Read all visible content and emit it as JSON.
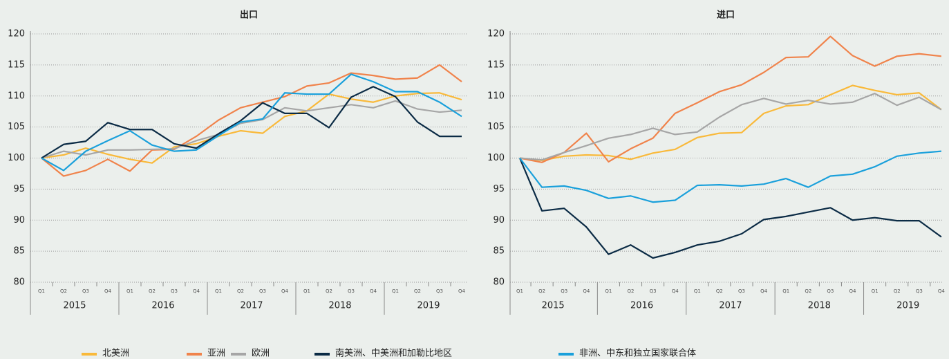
{
  "chart_data": [
    {
      "type": "line",
      "title": "出口",
      "categories": [
        "Q1",
        "Q2",
        "Q3",
        "Q4",
        "Q1",
        "Q2",
        "Q3",
        "Q4",
        "Q1",
        "Q2",
        "Q3",
        "Q4",
        "Q1",
        "Q2",
        "Q3",
        "Q4",
        "Q1",
        "Q2",
        "Q3",
        "Q4"
      ],
      "years": [
        "2015",
        "2016",
        "2017",
        "2018",
        "2019"
      ],
      "ylim": [
        80,
        120
      ],
      "yticks": [
        80,
        85,
        90,
        95,
        100,
        105,
        110,
        115,
        120
      ],
      "grid": true,
      "series": [
        {
          "name": "北美洲",
          "color": "#f9b93a",
          "values": [
            100,
            100.5,
            101.6,
            100.6,
            99.8,
            99.2,
            101.8,
            102.3,
            103.5,
            104.4,
            104.0,
            106.7,
            107.6,
            110.3,
            109.5,
            109.0,
            110.0,
            110.4,
            110.5,
            109.4
          ]
        },
        {
          "name": "亚洲",
          "color": "#f0834b",
          "values": [
            100,
            97.1,
            98.0,
            99.8,
            97.9,
            101.3,
            101.4,
            103.5,
            106.1,
            108.1,
            109.0,
            109.9,
            111.6,
            112.1,
            113.7,
            113.3,
            112.7,
            112.9,
            115.0,
            112.3
          ]
        },
        {
          "name": "欧洲",
          "color": "#a6a6a6",
          "values": [
            100,
            101.1,
            100.5,
            101.3,
            101.3,
            101.4,
            101.5,
            102.8,
            103.8,
            105.6,
            106.2,
            108.1,
            107.6,
            108.1,
            108.6,
            108.1,
            109.2,
            107.9,
            107.4,
            107.7
          ]
        },
        {
          "name": "南美洲、中美洲和加勒比地区",
          "color": "#0b2b45",
          "values": [
            100,
            102.2,
            102.7,
            105.7,
            104.6,
            104.6,
            102.3,
            101.6,
            103.9,
            106.0,
            108.9,
            107.2,
            107.2,
            104.9,
            109.8,
            111.5,
            109.9,
            105.8,
            103.5,
            103.5
          ]
        },
        {
          "name": "非洲、中东和独立国家联合体",
          "color": "#1aa0db",
          "values": [
            100,
            98.0,
            101.1,
            102.8,
            104.4,
            102.1,
            101.1,
            101.3,
            103.6,
            105.8,
            106.3,
            110.5,
            110.3,
            110.3,
            113.5,
            112.3,
            110.7,
            110.7,
            109.0,
            106.7
          ]
        }
      ]
    },
    {
      "type": "line",
      "title": "进口",
      "categories": [
        "Q1",
        "Q2",
        "Q3",
        "Q4",
        "Q1",
        "Q2",
        "Q3",
        "Q4",
        "Q1",
        "Q2",
        "Q3",
        "Q4",
        "Q1",
        "Q2",
        "Q3",
        "Q4",
        "Q1",
        "Q2",
        "Q3",
        "Q4"
      ],
      "years": [
        "2015",
        "2016",
        "2017",
        "2018",
        "2019"
      ],
      "ylim": [
        80,
        120
      ],
      "yticks": [
        80,
        85,
        90,
        95,
        100,
        105,
        110,
        115,
        120
      ],
      "grid": true,
      "series": [
        {
          "color": "#f9b93a",
          "values": [
            100,
            99.6,
            100.3,
            100.5,
            100.4,
            99.8,
            100.8,
            101.4,
            103.3,
            104.0,
            104.1,
            107.2,
            108.4,
            108.6,
            110.2,
            111.7,
            110.9,
            110.2,
            110.5,
            107.8
          ]
        },
        {
          "color": "#f0834b",
          "values": [
            100,
            99.3,
            100.9,
            104.0,
            99.4,
            101.5,
            103.2,
            107.2,
            108.9,
            110.7,
            111.8,
            113.8,
            116.2,
            116.3,
            119.6,
            116.5,
            114.8,
            116.4,
            116.8,
            116.4
          ]
        },
        {
          "color": "#a6a6a6",
          "values": [
            100,
            99.7,
            100.9,
            102.0,
            103.2,
            103.8,
            104.8,
            103.8,
            104.2,
            106.6,
            108.6,
            109.6,
            108.7,
            109.3,
            108.7,
            109.0,
            110.4,
            108.5,
            109.8,
            107.8
          ]
        },
        {
          "color": "#0b2b45",
          "values": [
            100,
            91.5,
            91.9,
            88.9,
            84.5,
            86.0,
            83.9,
            84.8,
            86.0,
            86.6,
            87.8,
            90.1,
            90.6,
            91.3,
            92.0,
            90.0,
            90.4,
            89.9,
            89.9,
            87.3
          ]
        },
        {
          "color": "#1aa0db",
          "values": [
            100,
            95.3,
            95.5,
            94.8,
            93.5,
            93.9,
            92.9,
            93.2,
            95.6,
            95.7,
            95.5,
            95.8,
            96.7,
            95.3,
            97.1,
            97.4,
            98.6,
            100.3,
            100.8,
            101.1
          ]
        }
      ]
    }
  ]
}
